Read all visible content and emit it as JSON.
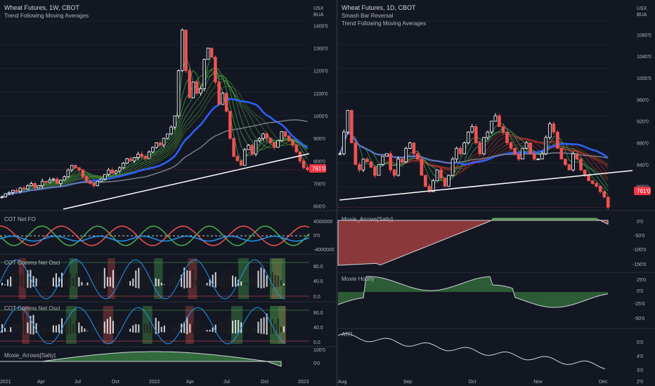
{
  "left": {
    "title": "Wheat Futures, 1W, CBOT",
    "studies": [
      "Trend Following Moving Averages"
    ],
    "currency": "USX",
    "unit": "BUA",
    "price_ticks": [
      "1400'0",
      "1300'0",
      "1200'0",
      "1100'0",
      "1000'0",
      "900'0",
      "800'0",
      "700'0",
      "600'0"
    ],
    "last_price": "761'0",
    "x_ticks": [
      "2021",
      "Apr",
      "Jul",
      "Oct",
      "2022",
      "Apr",
      "Jul",
      "Oct",
      "2023"
    ],
    "panes": [
      {
        "label": "COT Net FO",
        "ticks": [
          "4000000",
          "0'0",
          "-4000000"
        ]
      },
      {
        "label": "COT Comms Net Osci",
        "ticks": [
          "80.0",
          "40.0",
          "0.0"
        ]
      },
      {
        "label": "COT Comms Net Osci",
        "ticks": [
          "80.0",
          "40.0",
          "0.0"
        ]
      },
      {
        "label": "Moxie_Arrows[Salty]",
        "ticks": [
          "100'0",
          "0'0"
        ]
      }
    ]
  },
  "right": {
    "title": "Wheat Futures, 1D, CBOT",
    "studies": [
      "Smash Bar Reversal",
      "Trend Following Moving Averages"
    ],
    "currency": "USX",
    "unit": "BUA",
    "price_ticks": [
      "1080'0",
      "1040'0",
      "1000'0",
      "960'0",
      "920'0",
      "880'0",
      "840'0",
      "800'0"
    ],
    "last_price": "761'0",
    "x_ticks": [
      "Aug",
      "Sep",
      "Oct",
      "Nov",
      "Dec"
    ],
    "panes": [
      {
        "label": "Moxie_Arrows[Salty]",
        "ticks": [
          "0'0",
          "-50'0",
          "-100'0",
          "-150'0"
        ]
      },
      {
        "label": "Moxie Hourly",
        "ticks": [
          "25'0",
          "0'0",
          "-25'0",
          "-50'0"
        ]
      },
      {
        "label": "ATR",
        "ticks": [
          "5'0",
          "4'0",
          "3'0",
          "2'0"
        ]
      }
    ]
  },
  "colors": {
    "background": "#131722",
    "up": "#ffffff",
    "down": "#ef5350",
    "ma_blue": "#2962ff",
    "ma_green": "#4caf50",
    "ma_red": "#ef5350",
    "grid": "#1e2230",
    "text": "#b2b5be",
    "price_label_bg": "#f23645"
  },
  "chart_data": [
    {
      "type": "line",
      "title": "Wheat Futures, 1W, CBOT",
      "ylim": [
        580,
        1420
      ],
      "x_range": [
        "2021",
        "2023"
      ],
      "series": [
        {
          "name": "Wheat Futures",
          "values": [
            640,
            655,
            660,
            670,
            665,
            680,
            675,
            690,
            700,
            680,
            690,
            710,
            705,
            715,
            720,
            700,
            715,
            730,
            760,
            780,
            770,
            760,
            730,
            710,
            700,
            690,
            710,
            720,
            740,
            760,
            745,
            755,
            770,
            790,
            810,
            800,
            815,
            830,
            820,
            810,
            840,
            860,
            880,
            870,
            900,
            920,
            950,
            1000,
            1200,
            1380,
            1200,
            1080,
            1150,
            1100,
            1120,
            1250,
            1300,
            1260,
            1150,
            1050,
            1100,
            1020,
            900,
            820,
            800,
            780,
            850,
            870,
            830,
            890,
            900,
            920,
            900,
            880,
            860,
            890,
            930,
            910,
            890,
            870,
            840,
            800,
            770,
            761
          ]
        }
      ],
      "last_price": 761
    },
    {
      "type": "line",
      "title": "Wheat Futures, 1D, CBOT",
      "ylim": [
        755,
        1105
      ],
      "x_range": [
        "Aug",
        "Dec"
      ],
      "series": [
        {
          "name": "Wheat Futures",
          "values": [
            860,
            900,
            940,
            880,
            840,
            830,
            850,
            845,
            835,
            820,
            840,
            855,
            860,
            830,
            820,
            850,
            845,
            870,
            880,
            860,
            850,
            820,
            800,
            790,
            810,
            830,
            815,
            800,
            820,
            850,
            870,
            860,
            880,
            900,
            910,
            880,
            860,
            890,
            900,
            920,
            930,
            910,
            900,
            880,
            870,
            860,
            850,
            870,
            880,
            860,
            850,
            850,
            860,
            890,
            915,
            900,
            870,
            850,
            840,
            830,
            860,
            850,
            830,
            820,
            810,
            805,
            800,
            790,
            780,
            761
          ]
        }
      ],
      "last_price": 761
    }
  ]
}
